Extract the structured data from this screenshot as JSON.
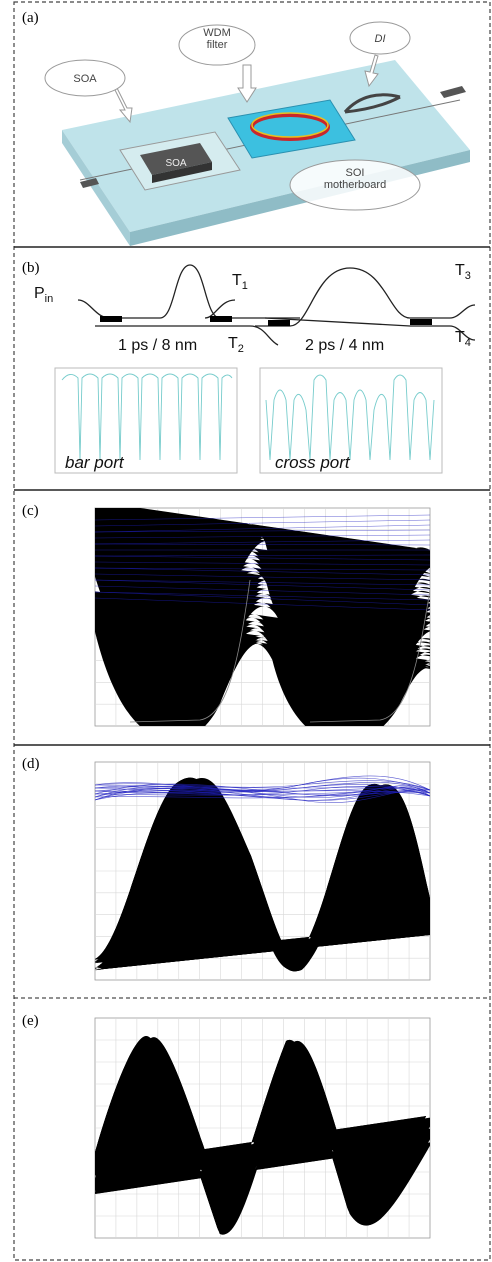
{
  "panels": [
    {
      "label": "(a)",
      "callouts": [
        "SOA",
        "WDM\nfilter",
        "DI",
        "SOI\nmotherboard"
      ],
      "chip_label": "SOA"
    },
    {
      "label": "(b)",
      "input": {
        "symbol": "P",
        "sub": "in"
      },
      "ports": [
        {
          "symbol": "T",
          "sub": "1"
        },
        {
          "symbol": "T",
          "sub": "2"
        },
        {
          "symbol": "T",
          "sub": "3"
        },
        {
          "symbol": "T",
          "sub": "4"
        }
      ],
      "stages": [
        "1 ps / 8 nm",
        "2 ps / 4 nm"
      ],
      "plots": [
        "bar port",
        "cross port"
      ]
    },
    {
      "label": "(c)"
    },
    {
      "label": "(d)"
    },
    {
      "label": "(e)"
    }
  ]
}
